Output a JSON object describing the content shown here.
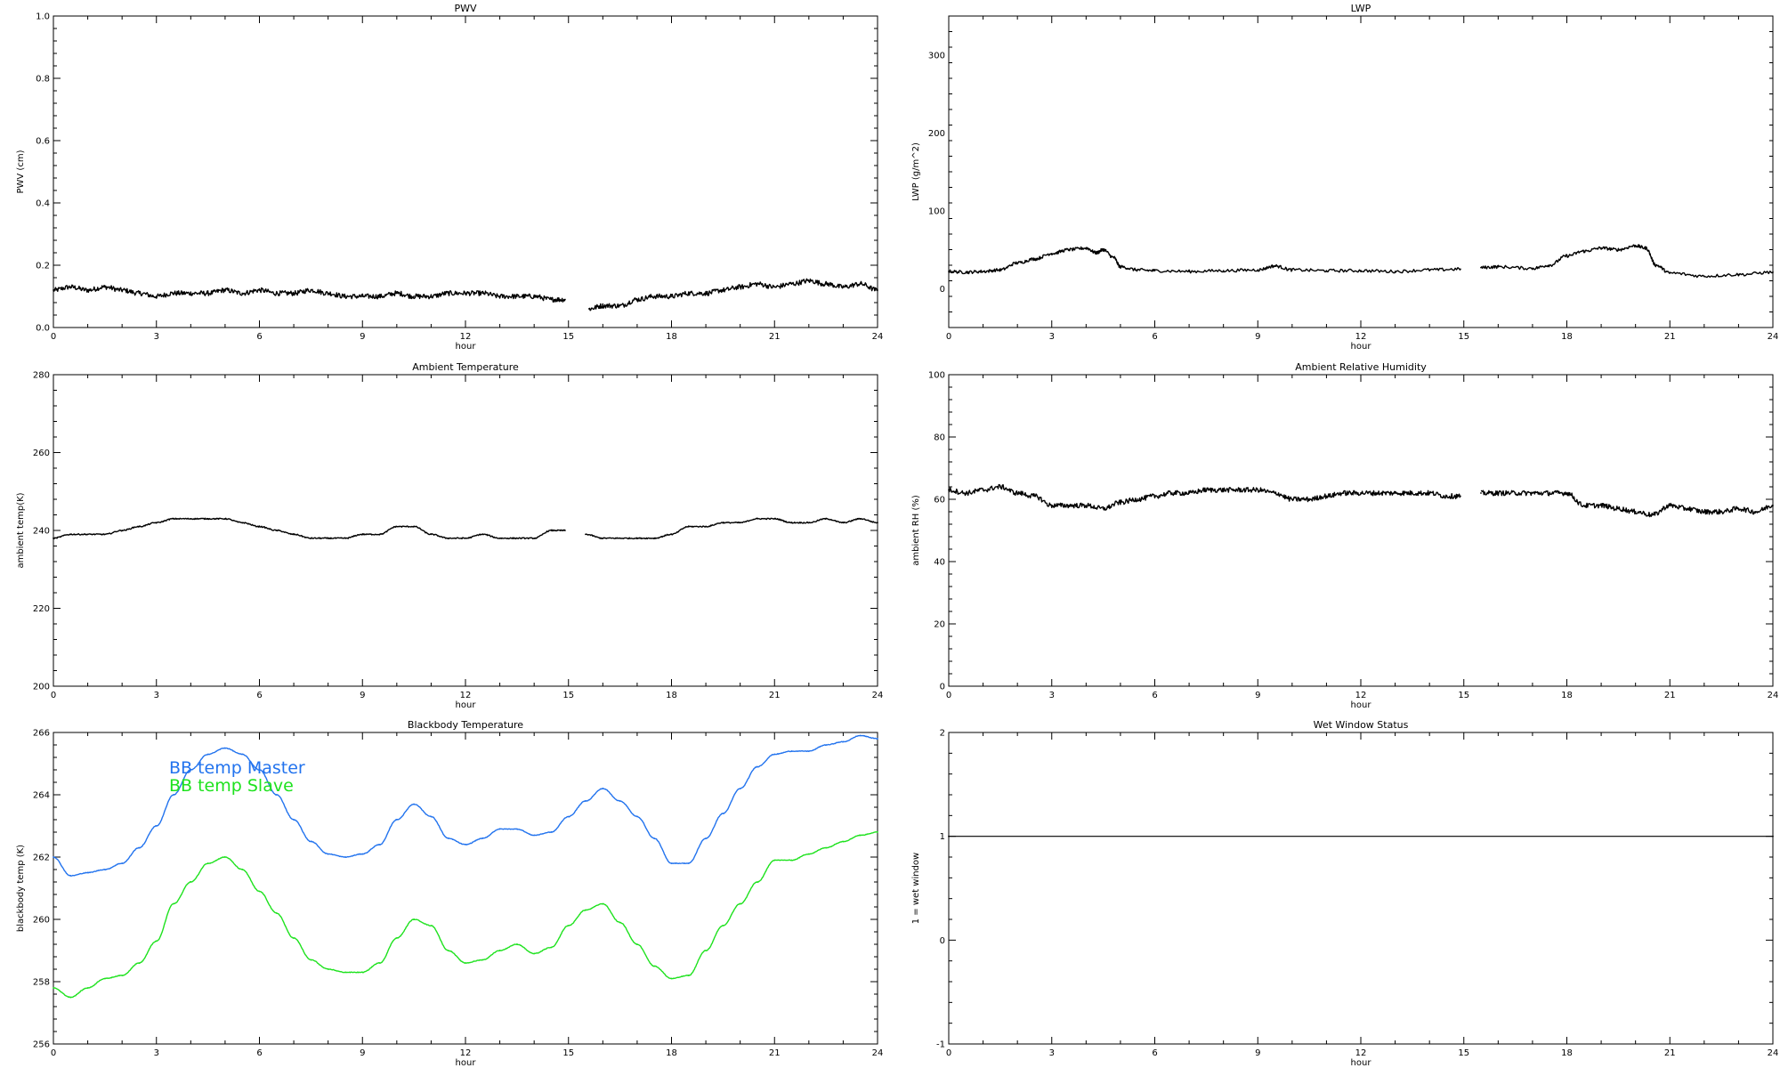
{
  "chart_data": [
    {
      "id": "pwv",
      "type": "line",
      "title": "PWV",
      "xlabel": "hour",
      "ylabel": "PWV (cm)",
      "xlim": [
        0,
        24
      ],
      "ylim": [
        0,
        1
      ],
      "xticks": [
        "0",
        "3",
        "6",
        "9",
        "12",
        "15",
        "18",
        "21",
        "24"
      ],
      "yticks": [
        "0.0",
        "0.2",
        "0.4",
        "0.6",
        "0.8",
        "1.0"
      ],
      "noise": 0.008,
      "series": [
        {
          "color": "#000000",
          "x": [
            0,
            0.5,
            1,
            1.5,
            2,
            2.5,
            3,
            3.5,
            4,
            4.5,
            5,
            5.5,
            6,
            6.5,
            7,
            7.5,
            8,
            8.5,
            9,
            9.5,
            10,
            10.5,
            11,
            11.5,
            12,
            12.5,
            13,
            13.5,
            14,
            14.5,
            14.9,
            null,
            15.6,
            16,
            16.5,
            17,
            17.5,
            18,
            18.5,
            19,
            19.5,
            20,
            20.5,
            21,
            21.5,
            22,
            22.5,
            23,
            23.5,
            24
          ],
          "y": [
            0.12,
            0.13,
            0.12,
            0.13,
            0.12,
            0.11,
            0.1,
            0.11,
            0.11,
            0.11,
            0.12,
            0.11,
            0.12,
            0.11,
            0.11,
            0.12,
            0.11,
            0.1,
            0.1,
            0.1,
            0.11,
            0.1,
            0.1,
            0.11,
            0.11,
            0.11,
            0.1,
            0.1,
            0.1,
            0.09,
            0.09,
            null,
            0.06,
            0.07,
            0.07,
            0.09,
            0.1,
            0.1,
            0.11,
            0.11,
            0.12,
            0.13,
            0.14,
            0.13,
            0.14,
            0.15,
            0.14,
            0.13,
            0.14,
            0.12
          ]
        }
      ]
    },
    {
      "id": "lwp",
      "type": "line",
      "title": "LWP",
      "xlabel": "hour",
      "ylabel": "LWP (g/m^2)",
      "xlim": [
        0,
        24
      ],
      "ylim": [
        -50,
        350
      ],
      "xticks": [
        "0",
        "3",
        "6",
        "9",
        "12",
        "15",
        "18",
        "21",
        "24"
      ],
      "yticks": [
        "0",
        "100",
        "200",
        "300"
      ],
      "ytick_values": [
        0,
        100,
        200,
        300
      ],
      "noise": 2,
      "series": [
        {
          "color": "#000000",
          "x": [
            0,
            0.5,
            1,
            1.5,
            2,
            2.5,
            3,
            3.5,
            4,
            4.3,
            4.5,
            4.8,
            5,
            5.5,
            6,
            7,
            8,
            9,
            9.5,
            10,
            11,
            12,
            13,
            14,
            14.9,
            null,
            15.5,
            16,
            17,
            17.5,
            18,
            18.5,
            19,
            19.5,
            20,
            20.3,
            20.6,
            21,
            22,
            23,
            24
          ],
          "y": [
            22,
            21,
            22,
            24,
            33,
            38,
            45,
            50,
            52,
            46,
            50,
            40,
            28,
            24,
            23,
            22,
            23,
            24,
            29,
            24,
            23,
            23,
            22,
            24,
            25,
            null,
            27,
            28,
            26,
            30,
            42,
            48,
            52,
            50,
            55,
            52,
            30,
            20,
            16,
            18,
            21
          ]
        }
      ]
    },
    {
      "id": "ambtemp",
      "type": "line",
      "title": "Ambient Temperature",
      "xlabel": "hour",
      "ylabel": "ambient temp(K)",
      "xlim": [
        0,
        24
      ],
      "ylim": [
        200,
        280
      ],
      "xticks": [
        "0",
        "3",
        "6",
        "9",
        "12",
        "15",
        "18",
        "21",
        "24"
      ],
      "yticks": [
        "200",
        "220",
        "240",
        "260",
        "280"
      ],
      "ytick_values": [
        200,
        220,
        240,
        260,
        280
      ],
      "noise": 0.15,
      "series": [
        {
          "color": "#000000",
          "x": [
            0,
            0.5,
            1,
            1.5,
            2,
            2.5,
            3,
            3.5,
            4,
            4.5,
            5,
            5.5,
            6,
            6.5,
            7,
            7.5,
            8,
            8.5,
            9,
            9.5,
            10,
            10.5,
            11,
            11.5,
            12,
            12.5,
            13,
            13.5,
            14,
            14.5,
            14.9,
            null,
            15.5,
            16,
            16.5,
            17,
            17.5,
            18,
            18.5,
            19,
            19.5,
            20,
            20.5,
            21,
            21.5,
            22,
            22.5,
            23,
            23.5,
            24
          ],
          "y": [
            238,
            239,
            239,
            239,
            240,
            241,
            242,
            243,
            243,
            243,
            243,
            242,
            241,
            240,
            239,
            238,
            238,
            238,
            239,
            239,
            241,
            241,
            239,
            238,
            238,
            239,
            238,
            238,
            238,
            240,
            240,
            null,
            239,
            238,
            238,
            238,
            238,
            239,
            241,
            241,
            242,
            242,
            243,
            243,
            242,
            242,
            243,
            242,
            243,
            242
          ]
        }
      ]
    },
    {
      "id": "ambrh",
      "type": "line",
      "title": "Ambient Relative Humidity",
      "xlabel": "hour",
      "ylabel": "ambient RH (%)",
      "xlim": [
        0,
        24
      ],
      "ylim": [
        0,
        100
      ],
      "xticks": [
        "0",
        "3",
        "6",
        "9",
        "12",
        "15",
        "18",
        "21",
        "24"
      ],
      "yticks": [
        "0",
        "20",
        "40",
        "60",
        "80",
        "100"
      ],
      "ytick_values": [
        0,
        20,
        40,
        60,
        80,
        100
      ],
      "noise": 0.8,
      "series": [
        {
          "color": "#000000",
          "x": [
            0,
            0.5,
            1,
            1.5,
            2,
            2.5,
            3,
            3.5,
            4,
            4.5,
            5,
            5.5,
            6,
            6.5,
            7,
            7.5,
            8,
            8.5,
            9,
            9.5,
            10,
            10.5,
            11,
            11.5,
            12,
            12.5,
            13,
            13.5,
            14,
            14.5,
            14.9,
            null,
            15.5,
            16,
            16.5,
            17,
            17.5,
            18,
            18.5,
            19,
            19.5,
            20,
            20.5,
            21,
            21.5,
            22,
            22.5,
            23,
            23.5,
            24
          ],
          "y": [
            63,
            62,
            63,
            64,
            62,
            61,
            58,
            58,
            58,
            57,
            59,
            60,
            61,
            62,
            62,
            63,
            63,
            63,
            63,
            62,
            60,
            60,
            61,
            62,
            62,
            62,
            62,
            62,
            62,
            61,
            61,
            null,
            62,
            62,
            62,
            62,
            62,
            62,
            58,
            58,
            57,
            56,
            55,
            58,
            57,
            56,
            56,
            57,
            56,
            58
          ]
        }
      ]
    },
    {
      "id": "bbtemp",
      "type": "line",
      "title": "Blackbody Temperature",
      "xlabel": "hour",
      "ylabel": "blackbody temp (K)",
      "xlim": [
        0,
        24
      ],
      "ylim": [
        256,
        266
      ],
      "xticks": [
        "0",
        "3",
        "6",
        "9",
        "12",
        "15",
        "18",
        "21",
        "24"
      ],
      "yticks": [
        "256",
        "258",
        "260",
        "262",
        "264",
        "266"
      ],
      "ytick_values": [
        256,
        258,
        260,
        262,
        264,
        266
      ],
      "legend": "top-left",
      "noise": 0.01,
      "series": [
        {
          "name": "BB temp Master",
          "color": "#2273ee",
          "x": [
            0,
            0.5,
            1,
            1.5,
            2,
            2.5,
            3,
            3.5,
            4,
            4.5,
            5,
            5.5,
            6,
            6.5,
            7,
            7.5,
            8,
            8.5,
            9,
            9.5,
            10,
            10.5,
            11,
            11.5,
            12,
            12.5,
            13,
            13.5,
            14,
            14.5,
            15,
            15.5,
            16,
            16.5,
            17,
            17.5,
            18,
            18.5,
            19,
            19.5,
            20,
            20.5,
            21,
            21.5,
            22,
            22.5,
            23,
            23.5,
            24
          ],
          "y": [
            262,
            261.4,
            261.5,
            261.6,
            261.8,
            262.3,
            263,
            264,
            264.8,
            265.3,
            265.5,
            265.3,
            264.8,
            264,
            263.2,
            262.5,
            262.1,
            262,
            262.1,
            262.4,
            263.2,
            263.7,
            263.3,
            262.6,
            262.4,
            262.6,
            262.9,
            262.9,
            262.7,
            262.8,
            263.3,
            263.8,
            264.2,
            263.8,
            263.3,
            262.6,
            261.8,
            261.8,
            262.6,
            263.4,
            264.2,
            264.9,
            265.3,
            265.4,
            265.4,
            265.6,
            265.7,
            265.9,
            265.8
          ]
        },
        {
          "name": "BB temp Slave",
          "color": "#1ee21e",
          "x": [
            0,
            0.5,
            1,
            1.5,
            2,
            2.5,
            3,
            3.5,
            4,
            4.5,
            5,
            5.5,
            6,
            6.5,
            7,
            7.5,
            8,
            8.5,
            9,
            9.5,
            10,
            10.5,
            11,
            11.5,
            12,
            12.5,
            13,
            13.5,
            14,
            14.5,
            15,
            15.5,
            16,
            16.5,
            17,
            17.5,
            18,
            18.5,
            19,
            19.5,
            20,
            20.5,
            21,
            21.5,
            22,
            22.5,
            23,
            23.5,
            24
          ],
          "y": [
            257.8,
            257.5,
            257.8,
            258.1,
            258.2,
            258.6,
            259.3,
            260.5,
            261.2,
            261.8,
            262,
            261.6,
            260.9,
            260.2,
            259.4,
            258.7,
            258.4,
            258.3,
            258.3,
            258.6,
            259.4,
            260,
            259.8,
            259,
            258.6,
            258.7,
            259,
            259.2,
            258.9,
            259.1,
            259.8,
            260.3,
            260.5,
            259.9,
            259.2,
            258.5,
            258.1,
            258.2,
            259,
            259.8,
            260.5,
            261.2,
            261.9,
            261.9,
            262.1,
            262.3,
            262.5,
            262.7,
            262.8
          ]
        }
      ]
    },
    {
      "id": "wetwindow",
      "type": "line",
      "title": "Wet Window Status",
      "xlabel": "hour",
      "ylabel": "1 = wet window",
      "xlim": [
        0,
        24
      ],
      "ylim": [
        -1,
        2
      ],
      "xticks": [
        "0",
        "3",
        "6",
        "9",
        "12",
        "15",
        "18",
        "21",
        "24"
      ],
      "yticks": [
        "-1",
        "0",
        "1",
        "2"
      ],
      "ytick_values": [
        -1,
        0,
        1,
        2
      ],
      "noise": 0,
      "series": [
        {
          "color": "#000000",
          "x": [
            0,
            24
          ],
          "y": [
            1,
            1
          ]
        }
      ]
    }
  ]
}
